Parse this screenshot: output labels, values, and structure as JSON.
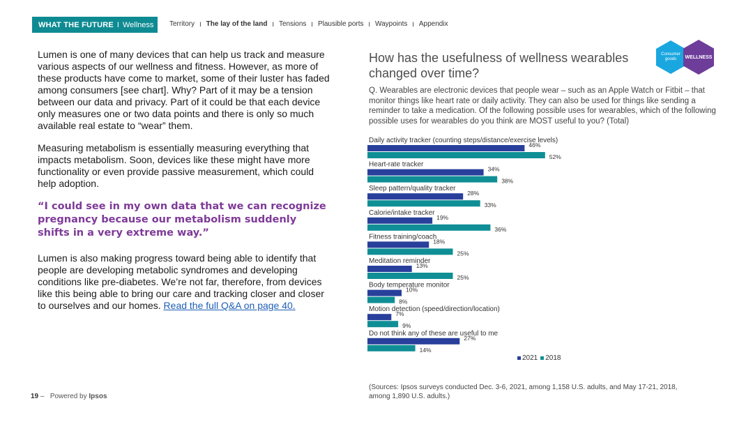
{
  "header": {
    "brand_bold": "WHAT THE FUTURE",
    "brand_sep": "I",
    "brand_section": "Wellness",
    "nav_sep": "I",
    "nav": [
      "Territory",
      "The lay of the land",
      "Tensions",
      "Plausible ports",
      "Waypoints",
      "Appendix"
    ],
    "active_index": 1
  },
  "body": {
    "para1": "Lumen is one of many devices that can help us track and measure various aspects of our wellness and fitness. However, as more of these products have come to market, some of their luster has faded among consumers [see chart]. Why? Part of it may be a tension between our data and privacy. Part of it could be that each device only measures one or two data points and there is only so much available real estate to “wear” them.",
    "para2": "Measuring metabolism is essentially measuring everything that impacts metabolism. Soon, devices like these might have more functionality or even provide passive measurement, which could help adoption.",
    "quote": "“I could see in my own data that we can recognize pregnancy because our metabolism suddenly shifts in a very extreme way.”",
    "para3": "Lumen is also making progress toward being able to identify that people are developing metabolic syndromes and developing conditions like pre-diabetes. We’re not far, therefore, from devices like this being able to bring our care and tracking closer and closer to ourselves and our homes.",
    "link": "Read the full Q&A on page 40."
  },
  "badges": {
    "consumer": "Consumer goods",
    "wellness": "WELLNESS"
  },
  "chart_title": "How has the usefulness of wellness wearables changed over time?",
  "question": "Q. Wearables are electronic devices that people wear – such as an Apple Watch or Fitbit – that monitor things like heart rate or daily activity. They can also be used for things like sending a reminder to take a medication. Of the following possible uses for wearables, which of the following possible uses for wearables do you think are MOST useful to you? (Total)",
  "chart_data": {
    "type": "bar",
    "orientation": "horizontal",
    "categories": [
      "Daily activity tracker (counting steps/distance/exercise levels)",
      "Heart-rate tracker",
      "Sleep pattern/quality tracker",
      "Calorie/intake tracker",
      "Fitness training/coach",
      "Meditation reminder",
      "Body temperature monitor",
      "Motion detection (speed/direction/location)",
      "Do not think any of these are useful to me"
    ],
    "series": [
      {
        "name": "2021",
        "color": "#283f9b",
        "values": [
          46,
          34,
          28,
          19,
          18,
          13,
          10,
          7,
          27
        ]
      },
      {
        "name": "2018",
        "color": "#0f8f95",
        "values": [
          52,
          38,
          33,
          36,
          25,
          25,
          8,
          9,
          14
        ]
      }
    ],
    "value_suffix": "%",
    "legend_position": "bottom-center"
  },
  "footer": {
    "page": "19",
    "dash": "–",
    "powered": "Powered by",
    "brand": "Ipsos",
    "sources": "(Sources: Ipsos surveys conducted Dec. 3-6, 2021, among 1,158 U.S. adults, and May 17-21, 2018, among 1,890 U.S. adults.)"
  }
}
